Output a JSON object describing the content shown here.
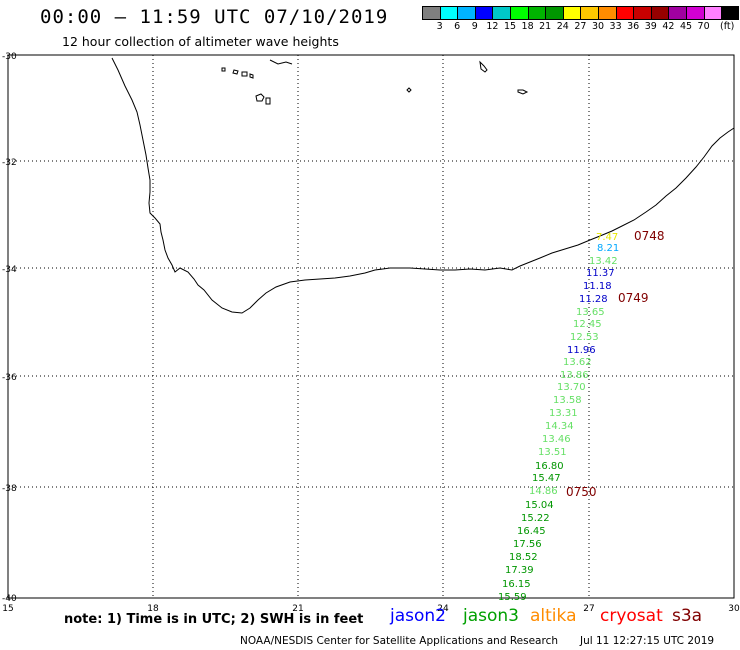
{
  "header": {
    "title": "00:00 – 11:59 UTC 07/10/2019",
    "subtitle": "12 hour collection of altimeter wave heights"
  },
  "colorbar": {
    "colors": [
      "#7f7f7f",
      "#00ffff",
      "#00b4ff",
      "#0000ff",
      "#00c8c8",
      "#00ff00",
      "#00b400",
      "#009600",
      "#ffff00",
      "#ffc800",
      "#ff8c00",
      "#ff0000",
      "#c80000",
      "#960000",
      "#a000a0",
      "#d200d2",
      "#ff80ff",
      "#000000"
    ],
    "labels": [
      "3",
      "6",
      "9",
      "12",
      "15",
      "18",
      "21",
      "24",
      "27",
      "30",
      "33",
      "36",
      "39",
      "42",
      "45",
      "70",
      "(ft)"
    ]
  },
  "axes": {
    "y_labels": [
      "-30",
      "-32",
      "-34",
      "-36",
      "-38",
      "-40"
    ],
    "x_labels": [
      "15",
      "18",
      "21",
      "24",
      "27",
      "30"
    ]
  },
  "track_labels": [
    {
      "text": "7.47",
      "color": "#e8e800"
    },
    {
      "text": "8.21",
      "color": "#00a8ff"
    },
    {
      "text": "13.42",
      "color": "#66e066"
    },
    {
      "text": "11.37",
      "color": "#0000c8"
    },
    {
      "text": "11.18",
      "color": "#0000c8"
    },
    {
      "text": "11.28",
      "color": "#0000c8"
    },
    {
      "text": "13.65",
      "color": "#66e066"
    },
    {
      "text": "12.45",
      "color": "#66e066"
    },
    {
      "text": "12.53",
      "color": "#66e066"
    },
    {
      "text": "11.96",
      "color": "#0000c8"
    },
    {
      "text": "13.62",
      "color": "#66e066"
    },
    {
      "text": "13.86",
      "color": "#66e066"
    },
    {
      "text": "13.70",
      "color": "#66e066"
    },
    {
      "text": "13.58",
      "color": "#66e066"
    },
    {
      "text": "13.31",
      "color": "#66e066"
    },
    {
      "text": "14.34",
      "color": "#66e066"
    },
    {
      "text": "13.46",
      "color": "#66e066"
    },
    {
      "text": "13.51",
      "color": "#66e066"
    },
    {
      "text": "16.80",
      "color": "#009600"
    },
    {
      "text": "15.47",
      "color": "#009600"
    },
    {
      "text": "14.86",
      "color": "#66e066"
    },
    {
      "text": "15.04",
      "color": "#009600"
    },
    {
      "text": "15.22",
      "color": "#009600"
    },
    {
      "text": "16.45",
      "color": "#009600"
    },
    {
      "text": "17.56",
      "color": "#009600"
    },
    {
      "text": "18.52",
      "color": "#009600"
    },
    {
      "text": "17.39",
      "color": "#009600"
    },
    {
      "text": "16.15",
      "color": "#009600"
    },
    {
      "text": "15.59",
      "color": "#009600"
    }
  ],
  "time_labels": [
    {
      "text": "0748",
      "color": "#800000"
    },
    {
      "text": "0749",
      "color": "#800000"
    },
    {
      "text": "0750",
      "color": "#800000"
    }
  ],
  "footer": {
    "note": "note: 1) Time is in UTC; 2) SWH is in feet",
    "satellites": [
      {
        "name": "jason2",
        "color": "#0000ff"
      },
      {
        "name": "jason3",
        "color": "#00a000"
      },
      {
        "name": "altika",
        "color": "#ff8c00"
      },
      {
        "name": "cryosat",
        "color": "#ff0000"
      },
      {
        "name": "s3a",
        "color": "#800000"
      }
    ],
    "credit": "NOAA/NESDIS Center for Satellite Applications and Research",
    "timestamp": "Jul 11 12:27:15 UTC 2019"
  }
}
